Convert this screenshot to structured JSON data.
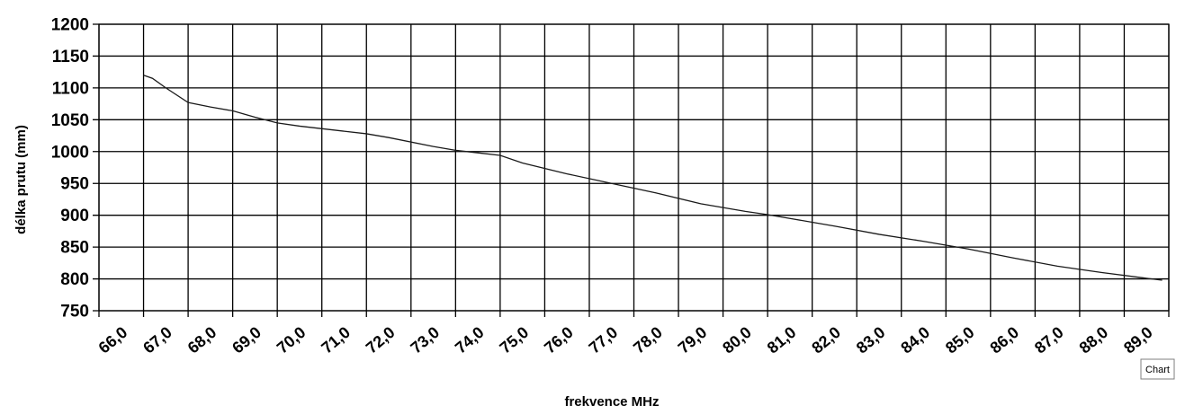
{
  "chart_data": {
    "type": "line",
    "title": "",
    "xlabel": "frekvence MHz",
    "ylabel": "délka prutu (mm)",
    "x_ticks": [
      "66,0",
      "67,0",
      "68,0",
      "69,0",
      "70,0",
      "71,0",
      "72,0",
      "73,0",
      "74,0",
      "75,0",
      "76,0",
      "77,0",
      "78,0",
      "79,0",
      "80,0",
      "81,0",
      "82,0",
      "83,0",
      "84,0",
      "85,0",
      "86,0",
      "87,0",
      "88,0",
      "89,0"
    ],
    "y_ticks": [
      "750",
      "800",
      "850",
      "900",
      "950",
      "1000",
      "1050",
      "1100",
      "1150",
      "1200"
    ],
    "xlim": [
      65.5,
      89.5
    ],
    "ylim": [
      750,
      1200
    ],
    "grid": true,
    "legend": "none",
    "line_color": "#1a1a1a",
    "series": [
      {
        "x": [
          66.5,
          66.7,
          67.0,
          67.5,
          68.0,
          68.5,
          69.0,
          69.5,
          70.0,
          71.0,
          71.5,
          72.0,
          73.0,
          73.5,
          74.0,
          74.5,
          75.0,
          76.0,
          77.0,
          78.0,
          79.0,
          80.0,
          80.5,
          81.0,
          82.0,
          83.0,
          84.0,
          85.0,
          86.0,
          87.0,
          88.0,
          89.0,
          89.35
        ],
        "y": [
          1120,
          1115,
          1100,
          1077,
          1070,
          1064,
          1054,
          1045,
          1040,
          1032,
          1028,
          1022,
          1008,
          1002,
          998,
          994,
          982,
          965,
          950,
          935,
          918,
          906,
          901,
          895,
          883,
          870,
          859,
          847,
          833,
          820,
          810,
          801,
          798
        ]
      }
    ]
  },
  "badge": {
    "label": "Chart"
  }
}
